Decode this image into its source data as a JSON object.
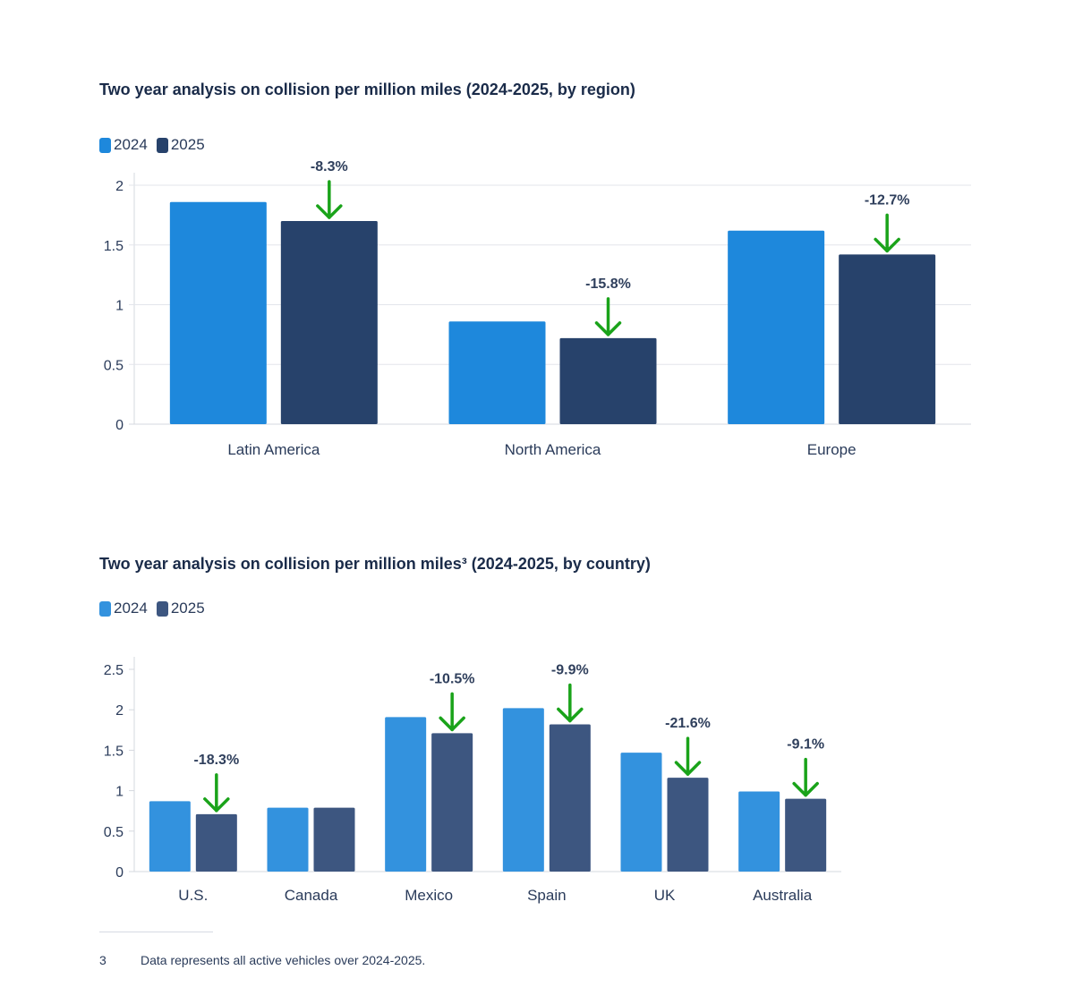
{
  "colors": {
    "y2024": "#1e88dc",
    "y2025": "#27426b",
    "y2024_light": "#3392de",
    "y2025_light": "#3d5680",
    "arrow": "#1aa31a",
    "grid": "#e3e6eb"
  },
  "chart_data": [
    {
      "type": "bar",
      "title": "Two year analysis on collision per million miles (2024-2025, by region)",
      "categories": [
        "Latin America",
        "North America",
        "Europe"
      ],
      "series": [
        {
          "name": "2024",
          "values": [
            1.86,
            0.86,
            1.62
          ]
        },
        {
          "name": "2025",
          "values": [
            1.7,
            0.72,
            1.42
          ]
        }
      ],
      "annotations": [
        "-8.3%",
        "-15.8%",
        "-12.7%"
      ],
      "yticks": [
        "0",
        "0.5",
        "1",
        "1.5",
        "2"
      ],
      "ylim": [
        0,
        2
      ],
      "grid": true,
      "legend_position": "top-left"
    },
    {
      "type": "bar",
      "title": "Two year analysis on collision per million miles³ (2024-2025, by country)",
      "categories": [
        "U.S.",
        "Canada",
        "Mexico",
        "Spain",
        "UK",
        "Australia"
      ],
      "series": [
        {
          "name": "2024",
          "values": [
            0.87,
            0.79,
            1.91,
            2.02,
            1.47,
            0.99
          ]
        },
        {
          "name": "2025",
          "values": [
            0.71,
            0.79,
            1.71,
            1.82,
            1.16,
            0.9
          ]
        }
      ],
      "annotations": [
        "-18.3%",
        "",
        "-10.5%",
        "-9.9%",
        "-21.6%",
        "-9.1%"
      ],
      "yticks": [
        "0",
        "0.5",
        "1",
        "1.5",
        "2",
        "2.5"
      ],
      "ylim": [
        0,
        2.5
      ],
      "grid": false,
      "legend_position": "top-left"
    }
  ],
  "footnote": {
    "number": "3",
    "text": "Data represents all active vehicles over 2024-2025."
  }
}
